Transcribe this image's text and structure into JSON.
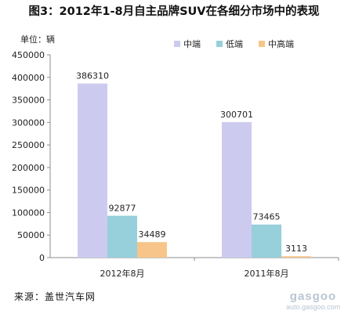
{
  "title": "图3：2012年1-8月自主品牌SUV在各细分市场中的表现",
  "unit_label": "单位：辆",
  "source": "来源：盖世汽车网",
  "watermark": {
    "logo": "gasgoo",
    "url": "auto.gasgoo.com"
  },
  "chart_data": {
    "type": "bar",
    "title": "图3：2012年1-8月自主品牌SUV在各细分市场中的表现",
    "xlabel": "",
    "ylabel": "单位：辆",
    "categories": [
      "2012年8月",
      "2011年8月"
    ],
    "series": [
      {
        "name": "中端",
        "color": "#cccbef",
        "values": [
          386310,
          300701
        ]
      },
      {
        "name": "低端",
        "color": "#97cfdb",
        "values": [
          92877,
          73465
        ]
      },
      {
        "name": "中高端",
        "color": "#f7c589",
        "values": [
          34489,
          3113
        ]
      }
    ],
    "ylim": [
      0,
      450000
    ],
    "yticks": [
      0,
      50000,
      100000,
      150000,
      200000,
      250000,
      300000,
      350000,
      400000,
      450000
    ],
    "grid": false,
    "legend": "top-right",
    "data_labels": true
  }
}
